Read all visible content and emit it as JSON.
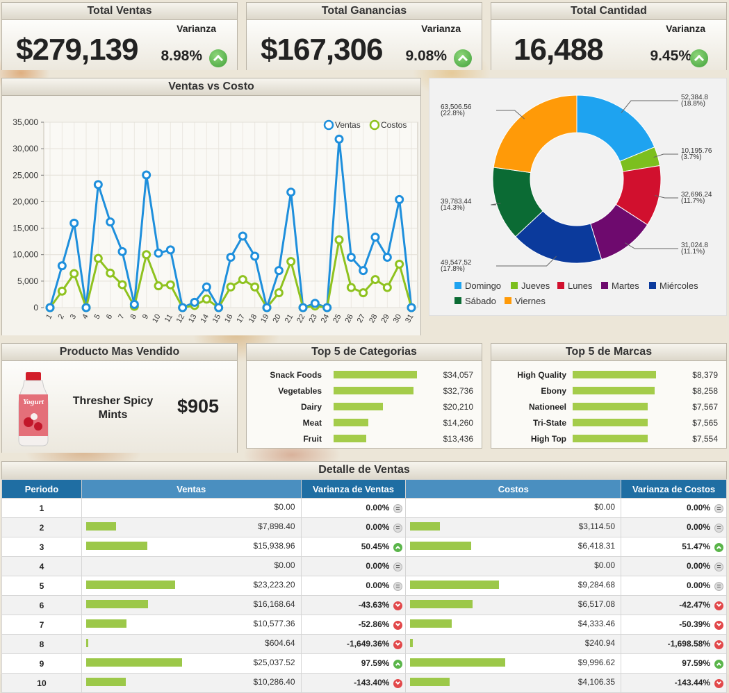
{
  "kpis": [
    {
      "title": "Total Ventas",
      "var_label": "Varianza",
      "value": "$279,139",
      "pct": "8.98%"
    },
    {
      "title": "Total Ganancias",
      "var_label": "Varianza",
      "value": "$167,306",
      "pct": "9.08%"
    },
    {
      "title": "Total Cantidad",
      "var_label": "Varianza",
      "value": "16,488",
      "pct": "9.45%"
    }
  ],
  "line_chart_title": "Ventas vs Costo",
  "top_product": {
    "title": "Producto Mas Vendido",
    "name": "Thresher Spicy Mints",
    "value": "$905",
    "image_label": "Yogurt"
  },
  "top_categories": {
    "title": "Top 5 de Categorias",
    "items": [
      {
        "name": "Snack Foods",
        "value": "$34,057",
        "frac": 1.0
      },
      {
        "name": "Vegetables",
        "value": "$32,736",
        "frac": 0.961
      },
      {
        "name": "Dairy",
        "value": "$20,210",
        "frac": 0.593
      },
      {
        "name": "Meat",
        "value": "$14,260",
        "frac": 0.419
      },
      {
        "name": "Fruit",
        "value": "$13,436",
        "frac": 0.395
      }
    ]
  },
  "top_brands": {
    "title": "Top 5 de Marcas",
    "items": [
      {
        "name": "High Quality",
        "value": "$8,379",
        "frac": 1.0
      },
      {
        "name": "Ebony",
        "value": "$8,258",
        "frac": 0.986
      },
      {
        "name": "Nationeel",
        "value": "$7,567",
        "frac": 0.903
      },
      {
        "name": "Tri-State",
        "value": "$7,565",
        "frac": 0.903
      },
      {
        "name": "High Top",
        "value": "$7,554",
        "frac": 0.902
      }
    ]
  },
  "detail": {
    "title": "Detalle de Ventas",
    "headers": [
      "Periodo",
      "Ventas",
      "Varianza de Ventas",
      "Costos",
      "Varianza de Costos"
    ],
    "rows": [
      {
        "p": "1",
        "v": "$0.00",
        "vv": "0.00%",
        "vt": "eq",
        "c": "$0.00",
        "cv": "0.00%",
        "ct": "eq",
        "vf": 0,
        "cf": 0
      },
      {
        "p": "2",
        "v": "$7,898.40",
        "vv": "0.00%",
        "vt": "eq",
        "c": "$3,114.50",
        "cv": "0.00%",
        "ct": "eq",
        "vf": 0.315,
        "cf": 0.311
      },
      {
        "p": "3",
        "v": "$15,938.96",
        "vv": "50.45%",
        "vt": "up",
        "c": "$6,418.31",
        "cv": "51.47%",
        "ct": "up",
        "vf": 0.637,
        "cf": 0.642
      },
      {
        "p": "4",
        "v": "$0.00",
        "vv": "0.00%",
        "vt": "eq",
        "c": "$0.00",
        "cv": "0.00%",
        "ct": "eq",
        "vf": 0,
        "cf": 0
      },
      {
        "p": "5",
        "v": "$23,223.20",
        "vv": "0.00%",
        "vt": "eq",
        "c": "$9,284.68",
        "cv": "0.00%",
        "ct": "eq",
        "vf": 0.928,
        "cf": 0.929
      },
      {
        "p": "6",
        "v": "$16,168.64",
        "vv": "-43.63%",
        "vt": "down",
        "c": "$6,517.08",
        "cv": "-42.47%",
        "ct": "down",
        "vf": 0.646,
        "cf": 0.652
      },
      {
        "p": "7",
        "v": "$10,577.36",
        "vv": "-52.86%",
        "vt": "down",
        "c": "$4,333.46",
        "cv": "-50.39%",
        "ct": "down",
        "vf": 0.422,
        "cf": 0.433
      },
      {
        "p": "8",
        "v": "$604.64",
        "vv": "-1,649.36%",
        "vt": "down",
        "c": "$240.94",
        "cv": "-1,698.58%",
        "ct": "down",
        "vf": 0.024,
        "cf": 0.024
      },
      {
        "p": "9",
        "v": "$25,037.52",
        "vv": "97.59%",
        "vt": "up",
        "c": "$9,996.62",
        "cv": "97.59%",
        "ct": "up",
        "vf": 1.0,
        "cf": 1.0
      },
      {
        "p": "10",
        "v": "$10,286.40",
        "vv": "-143.40%",
        "vt": "down",
        "c": "$4,106.35",
        "cv": "-143.44%",
        "ct": "down",
        "vf": 0.411,
        "cf": 0.411
      }
    ]
  },
  "colors": {
    "ventas": "#1e8fdc",
    "costos": "#8fc21f",
    "bar": "#9cc849",
    "header": "#1f6ea3"
  },
  "chart_data": [
    {
      "type": "line",
      "title": "Ventas vs Costo",
      "x": [
        "1",
        "2",
        "3",
        "4",
        "5",
        "6",
        "7",
        "8",
        "9",
        "10",
        "11",
        "12",
        "13",
        "14",
        "15",
        "16",
        "17",
        "18",
        "19",
        "20",
        "21",
        "22",
        "23",
        "24",
        "25",
        "26",
        "27",
        "28",
        "29",
        "30",
        "31"
      ],
      "ylim": [
        0,
        35000
      ],
      "yticks": [
        "0",
        "5,000",
        "10,000",
        "15,000",
        "20,000",
        "25,000",
        "30,000",
        "35,000"
      ],
      "legend_position": "top-right",
      "series": [
        {
          "name": "Ventas",
          "color": "#1e8fdc",
          "values": [
            0,
            7898,
            15939,
            0,
            23223,
            16169,
            10577,
            605,
            25038,
            10286,
            10900,
            0,
            1000,
            3900,
            0,
            9500,
            13500,
            9700,
            0,
            7000,
            21800,
            0,
            800,
            0,
            31800,
            9500,
            7000,
            13300,
            9500,
            20400,
            0
          ]
        },
        {
          "name": "Costos",
          "color": "#8fc21f",
          "values": [
            0,
            3115,
            6418,
            0,
            9285,
            6517,
            4333,
            241,
            9997,
            4106,
            4300,
            0,
            400,
            1600,
            0,
            3900,
            5300,
            3900,
            0,
            2800,
            8700,
            0,
            300,
            0,
            12800,
            3800,
            2800,
            5300,
            3800,
            8200,
            0
          ]
        }
      ]
    },
    {
      "type": "pie",
      "donut": true,
      "slices": [
        {
          "name": "Domingo",
          "value": 52384.8,
          "label": "52,384.8",
          "pct": "(18.8%)",
          "color": "#1ea3f0"
        },
        {
          "name": "Jueves",
          "value": 10195.76,
          "label": "10,195.76",
          "pct": "(3.7%)",
          "color": "#7cbf1e"
        },
        {
          "name": "Lunes",
          "value": 32696.24,
          "label": "32,696.24",
          "pct": "(11.7%)",
          "color": "#d1102e"
        },
        {
          "name": "Martes",
          "value": 31024.8,
          "label": "31,024.8",
          "pct": "(11.1%)",
          "color": "#6e0a6e"
        },
        {
          "name": "Miércoles",
          "value": 49547.52,
          "label": "49,547.52",
          "pct": "(17.8%)",
          "color": "#0b3a9c"
        },
        {
          "name": "Sábado",
          "value": 39783.44,
          "label": "39,783.44",
          "pct": "(14.3%)",
          "color": "#0b6b34"
        },
        {
          "name": "Viernes",
          "value": 63506.56,
          "label": "63,506.56",
          "pct": "(22.8%)",
          "color": "#ff9a08"
        }
      ],
      "legend_position": "bottom"
    }
  ]
}
